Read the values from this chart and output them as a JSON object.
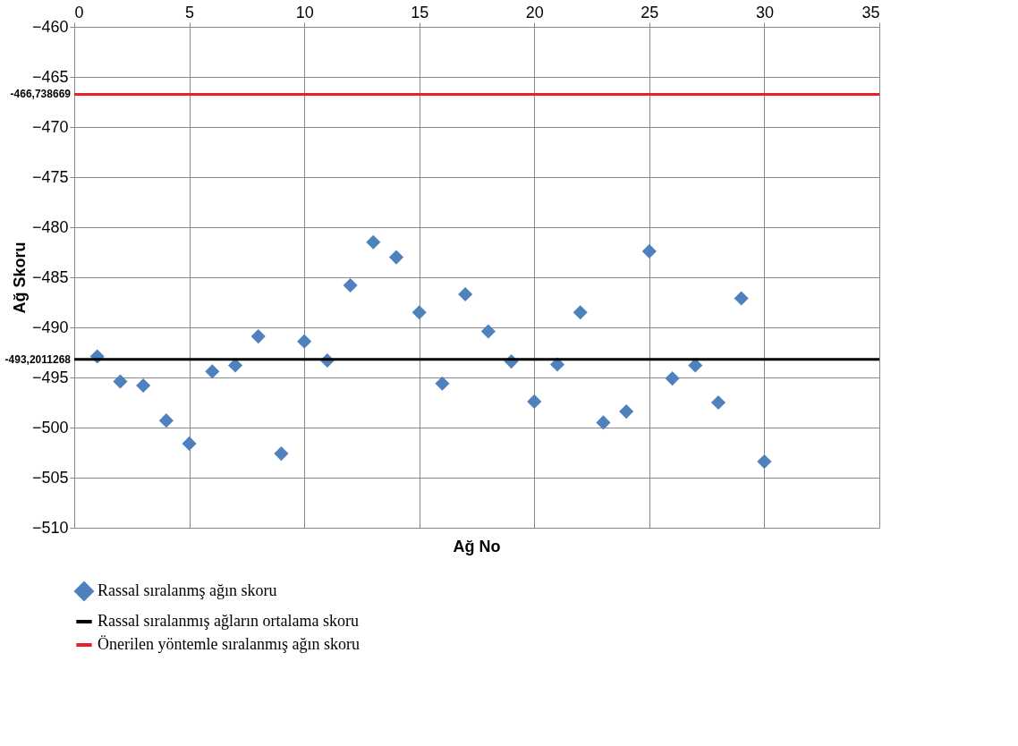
{
  "chart_data": {
    "type": "scatter",
    "xlabel": "Ağ No",
    "ylabel": "Ağ Skoru",
    "xlim": [
      0,
      35
    ],
    "xticks": [
      0,
      5,
      10,
      15,
      20,
      25,
      30,
      35
    ],
    "ylim": [
      -510,
      -460
    ],
    "yticks": [
      -460,
      -465,
      -470,
      -475,
      -480,
      -485,
      -490,
      -495,
      -500,
      -505,
      -510
    ],
    "x": [
      1,
      2,
      3,
      4,
      5,
      6,
      7,
      8,
      9,
      10,
      11,
      12,
      13,
      14,
      15,
      16,
      17,
      18,
      19,
      20,
      21,
      22,
      23,
      24,
      25,
      26,
      27,
      28,
      29,
      30
    ],
    "series": [
      {
        "name": "Rassal sıralanmş ağın skoru",
        "color": "#4f81bd",
        "values": [
          -492.9,
          -495.4,
          -495.8,
          -499.3,
          -501.6,
          -494.4,
          -493.8,
          -490.9,
          -502.6,
          -491.4,
          -493.3,
          -485.8,
          -481.5,
          -483.0,
          -488.5,
          -495.6,
          -486.7,
          -490.4,
          -493.4,
          -497.4,
          -493.7,
          -488.5,
          -499.5,
          -498.4,
          -482.4,
          -495.1,
          -493.8,
          -497.5,
          -487.1,
          -503.4
        ]
      }
    ],
    "ref_lines": [
      {
        "axis": "y",
        "value": -493.2011268,
        "label": "Rassal sıralanmış ağların ortalama skoru",
        "color": "#000000",
        "line_style": "solid"
      },
      {
        "axis": "y",
        "value": -466.738669,
        "label": "Önerilen yöntemle sıralanmış ağın skoru",
        "color": "#e8202a",
        "line_style": "solid"
      }
    ],
    "annotations": [
      {
        "text": "-466,738669",
        "x": 0,
        "y": -466.738669
      },
      {
        "text": "-493,2011268",
        "x": 0,
        "y": -493.2011268
      }
    ],
    "marker": "diamond",
    "grid": true,
    "legend": "bottom"
  }
}
